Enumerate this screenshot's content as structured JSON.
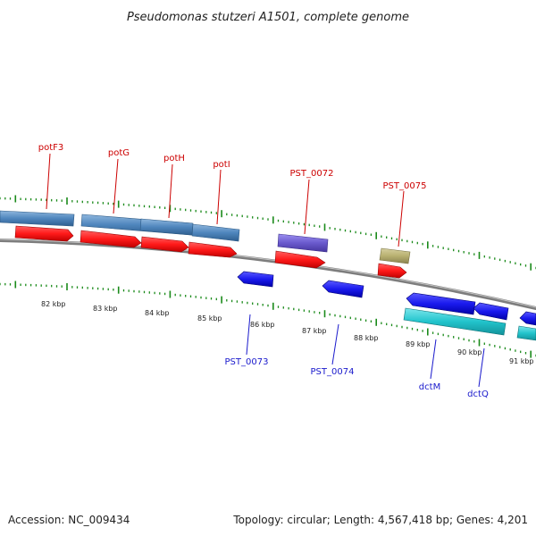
{
  "title": "Pseudomonas stutzeri A1501, complete genome",
  "footer": {
    "accession": "Accession: NC_009434",
    "topology": "Topology: circular; Length: 4,567,418 bp; Genes: 4,201"
  },
  "colors": {
    "backbone": "#8a8a8a",
    "tick": "#1a8a1a",
    "steelblue": "#4f86bd",
    "red": "#ff1a1a",
    "purple": "#6a5acd",
    "olive": "#b8b070",
    "blue": "#1a1aee",
    "cyan": "#22c4cc",
    "label_top": "#cc0000",
    "label_bottom": "#1a1acc"
  },
  "tick_labels": [
    "82 kbp",
    "83 kbp",
    "84 kbp",
    "85 kbp",
    "86 kbp",
    "87 kbp",
    "88 kbp",
    "89 kbp",
    "90 kbp",
    "91 kbp"
  ],
  "gene_labels_top": [
    "potF3",
    "potG",
    "potH",
    "potI",
    "PST_0072",
    "PST_0075"
  ],
  "gene_labels_bottom": [
    "PST_0073",
    "PST_0074",
    "dctM",
    "dctQ"
  ]
}
